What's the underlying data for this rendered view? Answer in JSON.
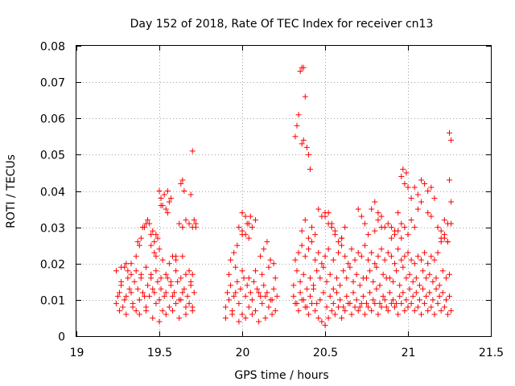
{
  "chart_data": {
    "type": "scatter",
    "title": "Day 152 of 2018, Rate Of TEC Index for receiver cn13",
    "xlabel": "GPS time / hours",
    "ylabel": "ROTI / TECUs",
    "xlim": [
      19,
      21.5
    ],
    "ylim": [
      0,
      0.08
    ],
    "x_ticks": [
      "19",
      "19.5",
      "20",
      "20.5",
      "21",
      "21.5"
    ],
    "y_ticks": [
      "0",
      "0.01",
      "0.02",
      "0.03",
      "0.04",
      "0.05",
      "0.06",
      "0.07",
      "0.08"
    ],
    "grid": true,
    "marker": "+",
    "color": "#ff0000",
    "series": [
      {
        "name": "ROTI",
        "x": [
          19.24,
          19.26,
          19.28,
          19.3,
          19.32,
          19.34,
          19.36,
          19.38,
          19.4,
          19.42,
          19.44,
          19.46,
          19.48,
          19.5,
          19.52,
          19.54,
          19.56,
          19.58,
          19.6,
          19.62,
          19.64,
          19.66,
          19.68,
          19.7,
          19.25,
          19.27,
          19.29,
          19.31,
          19.33,
          19.35,
          19.37,
          19.39,
          19.41,
          19.43,
          19.45,
          19.47,
          19.49,
          19.51,
          19.53,
          19.55,
          19.57,
          19.59,
          19.61,
          19.63,
          19.65,
          19.67,
          19.69,
          19.71,
          19.24,
          19.27,
          19.3,
          19.33,
          19.36,
          19.39,
          19.42,
          19.45,
          19.48,
          19.51,
          19.54,
          19.57,
          19.6,
          19.63,
          19.66,
          19.69,
          19.26,
          19.3,
          19.34,
          19.38,
          19.42,
          19.46,
          19.5,
          19.54,
          19.58,
          19.62,
          19.66,
          19.7,
          19.27,
          19.29,
          19.31,
          19.33,
          19.36,
          19.38,
          19.4,
          19.42,
          19.44,
          19.46,
          19.48,
          19.52,
          19.56,
          19.6,
          19.64,
          19.68,
          19.7,
          19.37,
          19.39,
          19.41,
          19.43,
          19.45,
          19.47,
          19.49,
          19.51,
          19.53,
          19.55,
          19.57,
          19.62,
          19.64,
          19.66,
          19.68,
          19.7,
          19.72,
          19.5,
          19.51,
          19.52,
          19.54,
          19.55,
          19.56,
          19.63,
          19.64,
          19.65,
          19.69,
          19.7,
          19.71,
          19.72,
          19.45,
          19.47,
          19.48,
          19.5,
          19.58,
          19.6,
          19.9,
          19.92,
          19.94,
          19.96,
          19.98,
          20.0,
          20.02,
          20.04,
          20.06,
          20.08,
          20.1,
          20.12,
          20.14,
          20.16,
          20.18,
          20.2,
          19.91,
          19.93,
          19.95,
          19.97,
          19.99,
          20.01,
          20.03,
          20.05,
          20.07,
          20.09,
          20.11,
          20.13,
          20.15,
          20.17,
          20.19,
          20.21,
          19.9,
          19.94,
          19.98,
          20.02,
          20.06,
          20.1,
          20.14,
          20.18,
          19.92,
          19.96,
          20.0,
          20.04,
          20.08,
          20.12,
          20.16,
          20.2,
          19.93,
          19.95,
          19.97,
          20.0,
          20.03,
          20.05,
          20.08,
          20.11,
          20.13,
          20.15,
          20.17,
          20.19,
          19.98,
          20.0,
          20.02,
          20.04,
          20.06,
          20.0,
          20.02,
          20.04,
          20.31,
          20.33,
          20.35,
          20.37,
          20.39,
          20.41,
          20.43,
          20.45,
          20.47,
          20.49,
          20.51,
          20.53,
          20.55,
          20.57,
          20.59,
          20.61,
          20.63,
          20.65,
          20.67,
          20.69,
          20.71,
          20.73,
          20.75,
          20.77,
          20.79,
          20.81,
          20.83,
          20.85,
          20.87,
          20.89,
          20.91,
          20.93,
          20.95,
          20.97,
          20.99,
          21.01,
          21.03,
          21.05,
          21.07,
          21.09,
          21.11,
          21.13,
          21.15,
          21.17,
          21.19,
          21.21,
          21.23,
          21.25,
          20.32,
          20.34,
          20.36,
          20.38,
          20.4,
          20.42,
          20.44,
          20.46,
          20.48,
          20.5,
          20.52,
          20.54,
          20.56,
          20.58,
          20.6,
          20.62,
          20.64,
          20.66,
          20.68,
          20.7,
          20.72,
          20.74,
          20.76,
          20.78,
          20.8,
          20.82,
          20.84,
          20.86,
          20.88,
          20.9,
          20.92,
          20.94,
          20.96,
          20.98,
          21.0,
          21.02,
          21.04,
          21.06,
          21.08,
          21.1,
          21.12,
          21.14,
          21.16,
          21.18,
          21.2,
          21.22,
          21.24,
          21.26,
          20.31,
          20.35,
          20.39,
          20.43,
          20.47,
          20.51,
          20.55,
          20.59,
          20.63,
          20.67,
          20.71,
          20.75,
          20.79,
          20.83,
          20.87,
          20.91,
          20.95,
          20.99,
          21.03,
          21.07,
          21.11,
          21.15,
          21.19,
          21.23,
          20.33,
          20.37,
          20.41,
          20.45,
          20.49,
          20.53,
          20.57,
          20.61,
          20.65,
          20.69,
          20.73,
          20.77,
          20.81,
          20.85,
          20.89,
          20.93,
          20.97,
          21.01,
          21.05,
          21.09,
          21.13,
          21.17,
          21.21,
          21.25,
          20.32,
          20.34,
          20.36,
          20.38,
          20.4,
          20.42,
          20.44,
          20.46,
          20.48,
          20.5,
          20.52,
          20.55,
          20.58,
          20.6,
          20.62,
          20.64,
          20.66,
          20.68,
          20.7,
          20.72,
          20.74,
          20.76,
          20.78,
          20.8,
          20.82,
          20.84,
          20.86,
          20.88,
          20.9,
          20.92,
          20.94,
          20.96,
          20.98,
          21.0,
          21.02,
          21.04,
          21.06,
          21.08,
          21.1,
          21.12,
          21.14,
          21.16,
          21.18,
          21.2,
          21.22,
          21.24,
          20.36,
          20.38,
          20.4,
          20.42,
          20.44,
          20.5,
          20.52,
          20.54,
          20.56,
          20.6,
          20.62,
          20.7,
          20.72,
          20.74,
          20.76,
          20.8,
          20.82,
          20.84,
          20.9,
          20.92,
          20.94,
          20.96,
          20.98,
          21.0,
          21.02,
          21.04,
          21.06,
          21.08,
          21.12,
          21.14,
          21.16,
          21.18,
          21.2,
          21.22,
          21.24,
          20.32,
          20.33,
          20.34,
          20.35,
          20.36,
          20.37,
          20.38,
          20.39,
          20.4,
          20.41,
          20.36,
          20.37,
          20.96,
          20.97,
          20.98,
          20.99,
          21.0,
          21.02,
          21.04,
          21.06,
          21.08,
          21.1,
          21.12,
          21.14,
          21.2,
          21.22,
          21.24,
          21.25,
          21.26,
          21.25,
          21.26,
          21.26,
          20.46,
          20.48,
          20.5,
          20.52,
          20.54,
          20.56,
          20.58,
          20.6,
          20.78,
          20.8,
          20.82,
          20.84,
          20.86,
          20.88,
          20.9,
          20.92,
          20.94,
          20.96
        ],
        "y": [
          0.009,
          0.012,
          0.008,
          0.011,
          0.013,
          0.009,
          0.007,
          0.01,
          0.012,
          0.008,
          0.011,
          0.013,
          0.009,
          0.01,
          0.007,
          0.012,
          0.008,
          0.011,
          0.009,
          0.01,
          0.012,
          0.008,
          0.009,
          0.007,
          0.011,
          0.014,
          0.01,
          0.016,
          0.012,
          0.015,
          0.013,
          0.017,
          0.011,
          0.014,
          0.016,
          0.012,
          0.015,
          0.013,
          0.011,
          0.016,
          0.014,
          0.012,
          0.015,
          0.01,
          0.013,
          0.011,
          0.014,
          0.012,
          0.018,
          0.019,
          0.02,
          0.017,
          0.018,
          0.016,
          0.019,
          0.017,
          0.018,
          0.016,
          0.017,
          0.015,
          0.018,
          0.016,
          0.017,
          0.015,
          0.007,
          0.006,
          0.008,
          0.006,
          0.007,
          0.005,
          0.004,
          0.006,
          0.007,
          0.005,
          0.006,
          0.008,
          0.015,
          0.019,
          0.018,
          0.02,
          0.022,
          0.025,
          0.03,
          0.031,
          0.031,
          0.029,
          0.028,
          0.021,
          0.02,
          0.022,
          0.022,
          0.018,
          0.017,
          0.026,
          0.027,
          0.03,
          0.032,
          0.028,
          0.026,
          0.027,
          0.036,
          0.039,
          0.04,
          0.038,
          0.031,
          0.03,
          0.032,
          0.031,
          0.03,
          0.03,
          0.04,
          0.038,
          0.036,
          0.035,
          0.034,
          0.037,
          0.042,
          0.043,
          0.04,
          0.039,
          0.051,
          0.032,
          0.031,
          0.025,
          0.023,
          0.022,
          0.024,
          0.022,
          0.021,
          0.008,
          0.01,
          0.007,
          0.012,
          0.009,
          0.006,
          0.011,
          0.008,
          0.01,
          0.007,
          0.012,
          0.009,
          0.011,
          0.008,
          0.01,
          0.007,
          0.012,
          0.014,
          0.011,
          0.015,
          0.013,
          0.016,
          0.014,
          0.012,
          0.015,
          0.013,
          0.011,
          0.014,
          0.012,
          0.01,
          0.013,
          0.011,
          0.005,
          0.006,
          0.004,
          0.005,
          0.006,
          0.004,
          0.005,
          0.006,
          0.017,
          0.019,
          0.018,
          0.016,
          0.018,
          0.017,
          0.019,
          0.016,
          0.021,
          0.023,
          0.025,
          0.028,
          0.031,
          0.033,
          0.032,
          0.022,
          0.024,
          0.026,
          0.021,
          0.02,
          0.03,
          0.034,
          0.033,
          0.031,
          0.03,
          0.029,
          0.028,
          0.027,
          0.011,
          0.009,
          0.012,
          0.01,
          0.008,
          0.011,
          0.013,
          0.009,
          0.01,
          0.012,
          0.008,
          0.011,
          0.009,
          0.012,
          0.01,
          0.008,
          0.011,
          0.009,
          0.012,
          0.01,
          0.008,
          0.011,
          0.009,
          0.012,
          0.01,
          0.013,
          0.009,
          0.011,
          0.008,
          0.012,
          0.01,
          0.009,
          0.011,
          0.012,
          0.01,
          0.013,
          0.011,
          0.012,
          0.01,
          0.013,
          0.011,
          0.012,
          0.01,
          0.013,
          0.011,
          0.012,
          0.01,
          0.011,
          0.009,
          0.007,
          0.01,
          0.008,
          0.006,
          0.009,
          0.007,
          0.005,
          0.004,
          0.003,
          0.005,
          0.007,
          0.006,
          0.008,
          0.005,
          0.007,
          0.009,
          0.006,
          0.008,
          0.007,
          0.009,
          0.006,
          0.008,
          0.007,
          0.009,
          0.006,
          0.008,
          0.01,
          0.007,
          0.009,
          0.008,
          0.006,
          0.009,
          0.007,
          0.008,
          0.009,
          0.007,
          0.008,
          0.006,
          0.009,
          0.007,
          0.008,
          0.006,
          0.009,
          0.007,
          0.008,
          0.006,
          0.007,
          0.014,
          0.015,
          0.013,
          0.014,
          0.016,
          0.015,
          0.013,
          0.014,
          0.016,
          0.015,
          0.014,
          0.016,
          0.015,
          0.014,
          0.016,
          0.015,
          0.014,
          0.016,
          0.015,
          0.014,
          0.016,
          0.015,
          0.014,
          0.016,
          0.018,
          0.017,
          0.016,
          0.018,
          0.019,
          0.017,
          0.016,
          0.018,
          0.019,
          0.017,
          0.016,
          0.018,
          0.019,
          0.017,
          0.016,
          0.018,
          0.019,
          0.017,
          0.016,
          0.018,
          0.017,
          0.016,
          0.018,
          0.017,
          0.021,
          0.023,
          0.025,
          0.022,
          0.024,
          0.026,
          0.021,
          0.023,
          0.02,
          0.022,
          0.024,
          0.021,
          0.023,
          0.025,
          0.022,
          0.02,
          0.024,
          0.021,
          0.023,
          0.022,
          0.025,
          0.021,
          0.023,
          0.02,
          0.022,
          0.024,
          0.021,
          0.023,
          0.022,
          0.02,
          0.024,
          0.021,
          0.022,
          0.023,
          0.021,
          0.02,
          0.022,
          0.021,
          0.023,
          0.02,
          0.022,
          0.021,
          0.023,
          0.026,
          0.027,
          0.026,
          0.029,
          0.032,
          0.027,
          0.03,
          0.028,
          0.033,
          0.034,
          0.031,
          0.029,
          0.027,
          0.03,
          0.035,
          0.033,
          0.031,
          0.028,
          0.029,
          0.032,
          0.03,
          0.027,
          0.029,
          0.034,
          0.031,
          0.03,
          0.028,
          0.032,
          0.03,
          0.035,
          0.037,
          0.04,
          0.041,
          0.038,
          0.03,
          0.027,
          0.028,
          0.026,
          0.055,
          0.058,
          0.061,
          0.073,
          0.074,
          0.074,
          0.066,
          0.052,
          0.05,
          0.046,
          0.053,
          0.054,
          0.044,
          0.046,
          0.042,
          0.045,
          0.041,
          0.038,
          0.041,
          0.039,
          0.043,
          0.042,
          0.034,
          0.033,
          0.029,
          0.032,
          0.031,
          0.043,
          0.054,
          0.056,
          0.037,
          0.031,
          0.035,
          0.033,
          0.034,
          0.031,
          0.03,
          0.028,
          0.026,
          0.027,
          0.035,
          0.037,
          0.034,
          0.033,
          0.03,
          0.031,
          0.03,
          0.028,
          0.029,
          0.027
        ]
      }
    ]
  }
}
